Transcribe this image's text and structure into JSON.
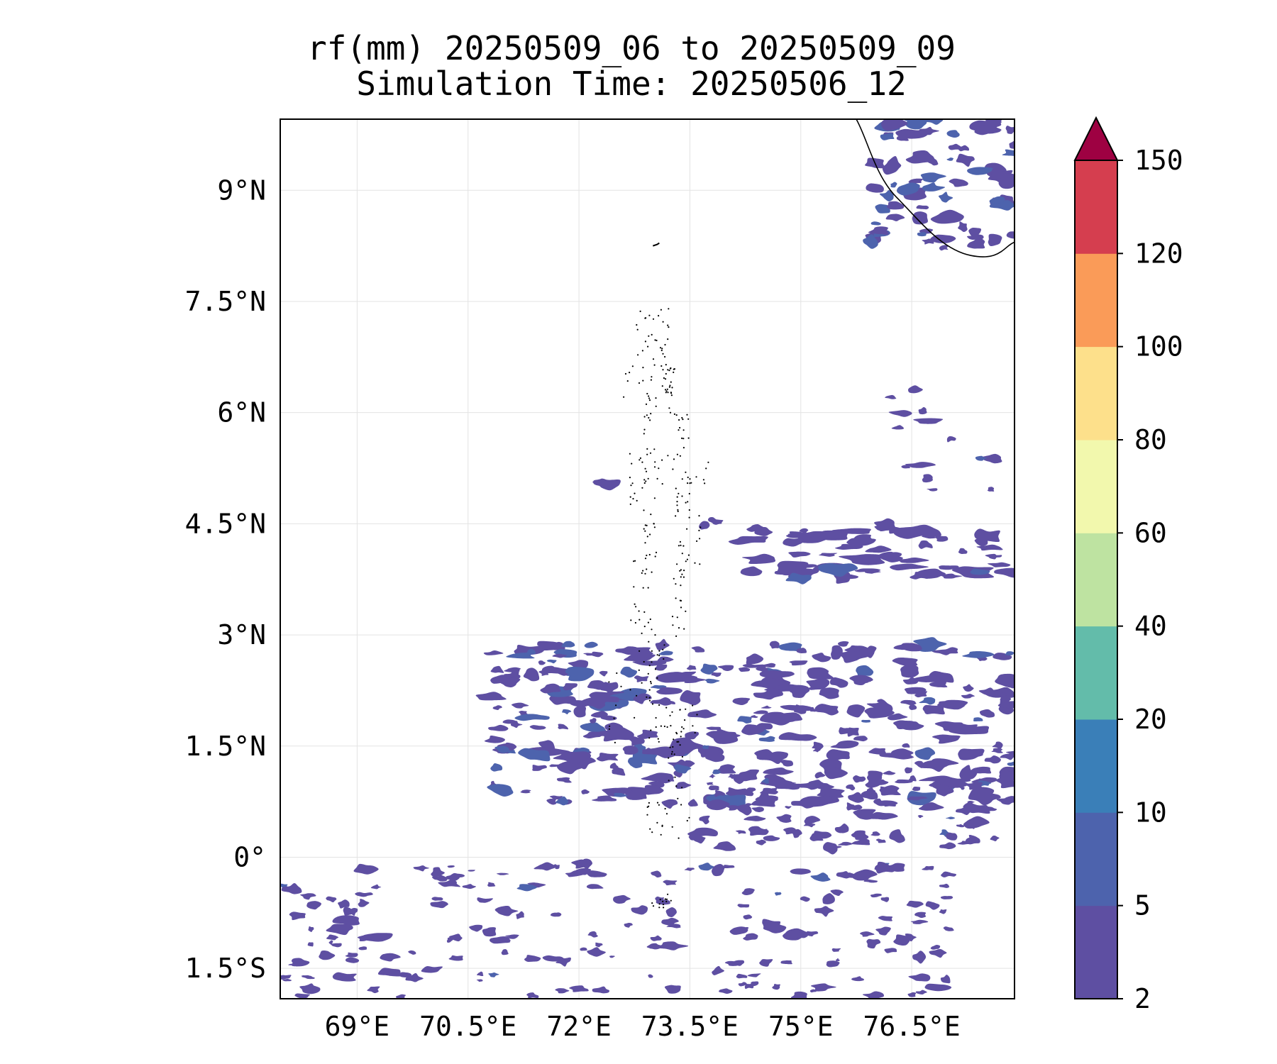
{
  "title": {
    "line1": "rf(mm) 20250509_06 to 20250509_09",
    "line2": "Simulation Time: 20250506_12"
  },
  "map": {
    "region": "Arabian Sea / Maldives / southern India",
    "lon_range": [
      67.96,
      77.89
    ],
    "lat_range": [
      -1.91,
      9.96
    ],
    "lon_ticks": [
      "69°E",
      "70.5°E",
      "72°E",
      "73.5°E",
      "75°E",
      "76.5°E"
    ],
    "lon_tick_values": [
      69,
      70.5,
      72,
      73.5,
      75,
      76.5
    ],
    "lat_ticks": [
      "9°N",
      "7.5°N",
      "6°N",
      "4.5°N",
      "3°N",
      "1.5°N",
      "0°",
      "1.5°S"
    ],
    "lat_tick_values": [
      9,
      7.5,
      6,
      4.5,
      3,
      1.5,
      0,
      -1.5
    ],
    "gridlines": true,
    "coastline_color": "#000000",
    "features": [
      "India south-west coast (top-right)",
      "Lakshadweep / Minicoy island",
      "Maldives atoll chain"
    ]
  },
  "colorbar": {
    "unit": "mm",
    "labels": [
      "2",
      "5",
      "10",
      "20",
      "40",
      "60",
      "80",
      "100",
      "120",
      "150"
    ],
    "colors": [
      "#5e4fa2",
      "#4d63ad",
      "#3a7fb8",
      "#63bcaa",
      "#bee3a1",
      "#f2f8ad",
      "#fde08b",
      "#fa9b58",
      "#d53e4f"
    ],
    "extend_color": "#9e0142",
    "extend": "max"
  },
  "chart_data": {
    "type": "heatmap",
    "title": "rf(mm) 20250509_06 to 20250509_09",
    "subtitle": "Simulation Time: 20250506_12",
    "xlabel": "",
    "ylabel": "",
    "xlim": [
      67.96,
      77.89
    ],
    "ylim": [
      -1.91,
      9.96
    ],
    "levels": [
      2,
      5,
      10,
      20,
      40,
      60,
      80,
      100,
      120,
      150
    ],
    "rain_regions": [
      {
        "label": "Kerala coast",
        "lon": [
          75.5,
          77.9
        ],
        "lat": [
          8.3,
          10.0
        ],
        "class_mm": "2-10"
      },
      {
        "label": "Band near 4°N",
        "lon": [
          74.0,
          77.9
        ],
        "lat": [
          3.7,
          4.6
        ],
        "class_mm": "2-5"
      },
      {
        "label": "Main band near 1-3°N",
        "lon": [
          70.8,
          77.9
        ],
        "lat": [
          0.3,
          2.9
        ],
        "class_mm": "2-10"
      },
      {
        "label": "Scattered cells south of equator",
        "lon": [
          68.0,
          77.0
        ],
        "lat": [
          -1.9,
          0.0
        ],
        "class_mm": "2-5"
      }
    ]
  }
}
